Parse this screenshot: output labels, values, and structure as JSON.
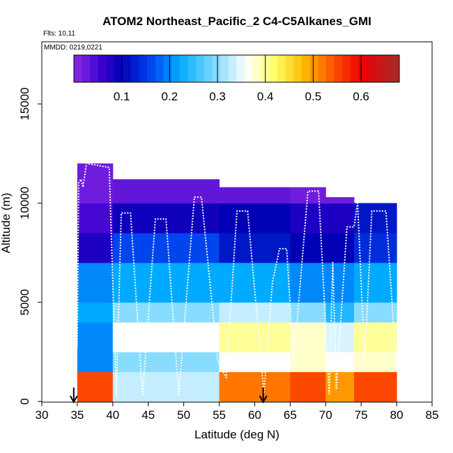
{
  "chart_data": {
    "type": "heatmap",
    "title": "ATOM2 Northeast_Pacific_2 C4-C5Alkanes_GMI",
    "subtitle_flights": "Flts: 10,11",
    "subtitle_dates": "MMDD: 0219,0221",
    "xlabel": "Latitude (deg N)",
    "ylabel": "Altitude (m)",
    "xlim": [
      30,
      85
    ],
    "ylim": [
      0,
      17500
    ],
    "xticks": [
      "30",
      "35",
      "40",
      "45",
      "50",
      "55",
      "60",
      "65",
      "70",
      "75",
      "80",
      "85"
    ],
    "yticks": [
      "0",
      "5000",
      "10000",
      "15000"
    ],
    "colorbar": {
      "min": 0.0,
      "max": 0.68,
      "ticks": [
        "0.1",
        "0.2",
        "0.3",
        "0.4",
        "0.5",
        "0.6"
      ],
      "tick_values": [
        0.1,
        0.2,
        0.3,
        0.4,
        0.5,
        0.6
      ],
      "stops": [
        {
          "v": 0.0,
          "c": "#8a2be2"
        },
        {
          "v": 0.06,
          "c": "#3a00d0"
        },
        {
          "v": 0.1,
          "c": "#0000b4"
        },
        {
          "v": 0.16,
          "c": "#0044ee"
        },
        {
          "v": 0.22,
          "c": "#00aaff"
        },
        {
          "v": 0.3,
          "c": "#88ddff"
        },
        {
          "v": 0.36,
          "c": "#ffffff"
        },
        {
          "v": 0.42,
          "c": "#ffff66"
        },
        {
          "v": 0.48,
          "c": "#ffbb00"
        },
        {
          "v": 0.54,
          "c": "#ff5500"
        },
        {
          "v": 0.6,
          "c": "#ee0000"
        },
        {
          "v": 0.68,
          "c": "#a52a2a"
        }
      ]
    },
    "columns": [
      {
        "x0": 35.0,
        "x1": 40.0,
        "top": 12000
      },
      {
        "x0": 40.0,
        "x1": 55.0,
        "top": 11200
      },
      {
        "x0": 55.0,
        "x1": 65.0,
        "top": 10800
      },
      {
        "x0": 65.0,
        "x1": 70.0,
        "top": 10800
      },
      {
        "x0": 70.0,
        "x1": 74.0,
        "top": 10300
      },
      {
        "x0": 74.0,
        "x1": 80.0,
        "top": 10000
      }
    ],
    "profiles": [
      {
        "alt_min": 0,
        "alt_max": 1500,
        "values_by_column": [
          0.55,
          0.33,
          0.52,
          0.55,
          0.5,
          0.55
        ]
      },
      {
        "alt_min": 1500,
        "alt_max": 2500,
        "values_by_column": [
          0.2,
          0.3,
          0.36,
          0.38,
          0.36,
          0.38
        ]
      },
      {
        "alt_min": 2500,
        "alt_max": 4000,
        "values_by_column": [
          0.2,
          0.36,
          0.4,
          0.38,
          0.34,
          0.4
        ]
      },
      {
        "alt_min": 4000,
        "alt_max": 5000,
        "values_by_column": [
          0.22,
          0.3,
          0.33,
          0.3,
          0.24,
          0.3
        ]
      },
      {
        "alt_min": 5000,
        "alt_max": 7000,
        "values_by_column": [
          0.2,
          0.22,
          0.22,
          0.2,
          0.2,
          0.22
        ]
      },
      {
        "alt_min": 7000,
        "alt_max": 8500,
        "values_by_column": [
          0.08,
          0.16,
          0.12,
          0.1,
          0.1,
          0.14
        ]
      },
      {
        "alt_min": 8500,
        "alt_max": 10000,
        "values_by_column": [
          0.05,
          0.09,
          0.1,
          0.08,
          0.08,
          0.12
        ]
      },
      {
        "alt_min": 10000,
        "alt_max": 12000,
        "values_by_column": [
          0.02,
          0.03,
          0.03,
          0.02,
          0.02,
          0.03
        ]
      }
    ],
    "flight_track": [
      [
        34.8,
        2000
      ],
      [
        35.0,
        3000
      ],
      [
        35.2,
        11000
      ],
      [
        35.5,
        11200
      ],
      [
        35.8,
        10800
      ],
      [
        36.3,
        12000
      ],
      [
        39.5,
        11800
      ],
      [
        40.5,
        300
      ],
      [
        41.2,
        9500
      ],
      [
        42.5,
        9500
      ],
      [
        44.2,
        300
      ],
      [
        46.0,
        9200
      ],
      [
        47.5,
        9200
      ],
      [
        49.3,
        300
      ],
      [
        51.5,
        10300
      ],
      [
        52.5,
        10300
      ],
      [
        54.8,
        2000
      ],
      [
        56.0,
        1200
      ],
      [
        57.5,
        9600
      ],
      [
        59.0,
        9600
      ],
      [
        61.3,
        400
      ],
      [
        62.5,
        6000
      ],
      [
        63.5,
        7700
      ],
      [
        64.5,
        7700
      ],
      [
        65.5,
        2000
      ],
      [
        67.5,
        10600
      ],
      [
        69.0,
        10600
      ],
      [
        70.5,
        400
      ],
      [
        71.0,
        7000
      ],
      [
        71.5,
        600
      ],
      [
        73.0,
        8800
      ],
      [
        74.0,
        8800
      ],
      [
        74.5,
        10000
      ],
      [
        75.5,
        2000
      ],
      [
        76.5,
        9600
      ],
      [
        78.5,
        9600
      ],
      [
        80.0,
        1500
      ]
    ],
    "arrows": [
      {
        "x": 34.5
      },
      {
        "x": 61.2
      }
    ],
    "grid": false,
    "legend": "colorbar-top-inside"
  }
}
